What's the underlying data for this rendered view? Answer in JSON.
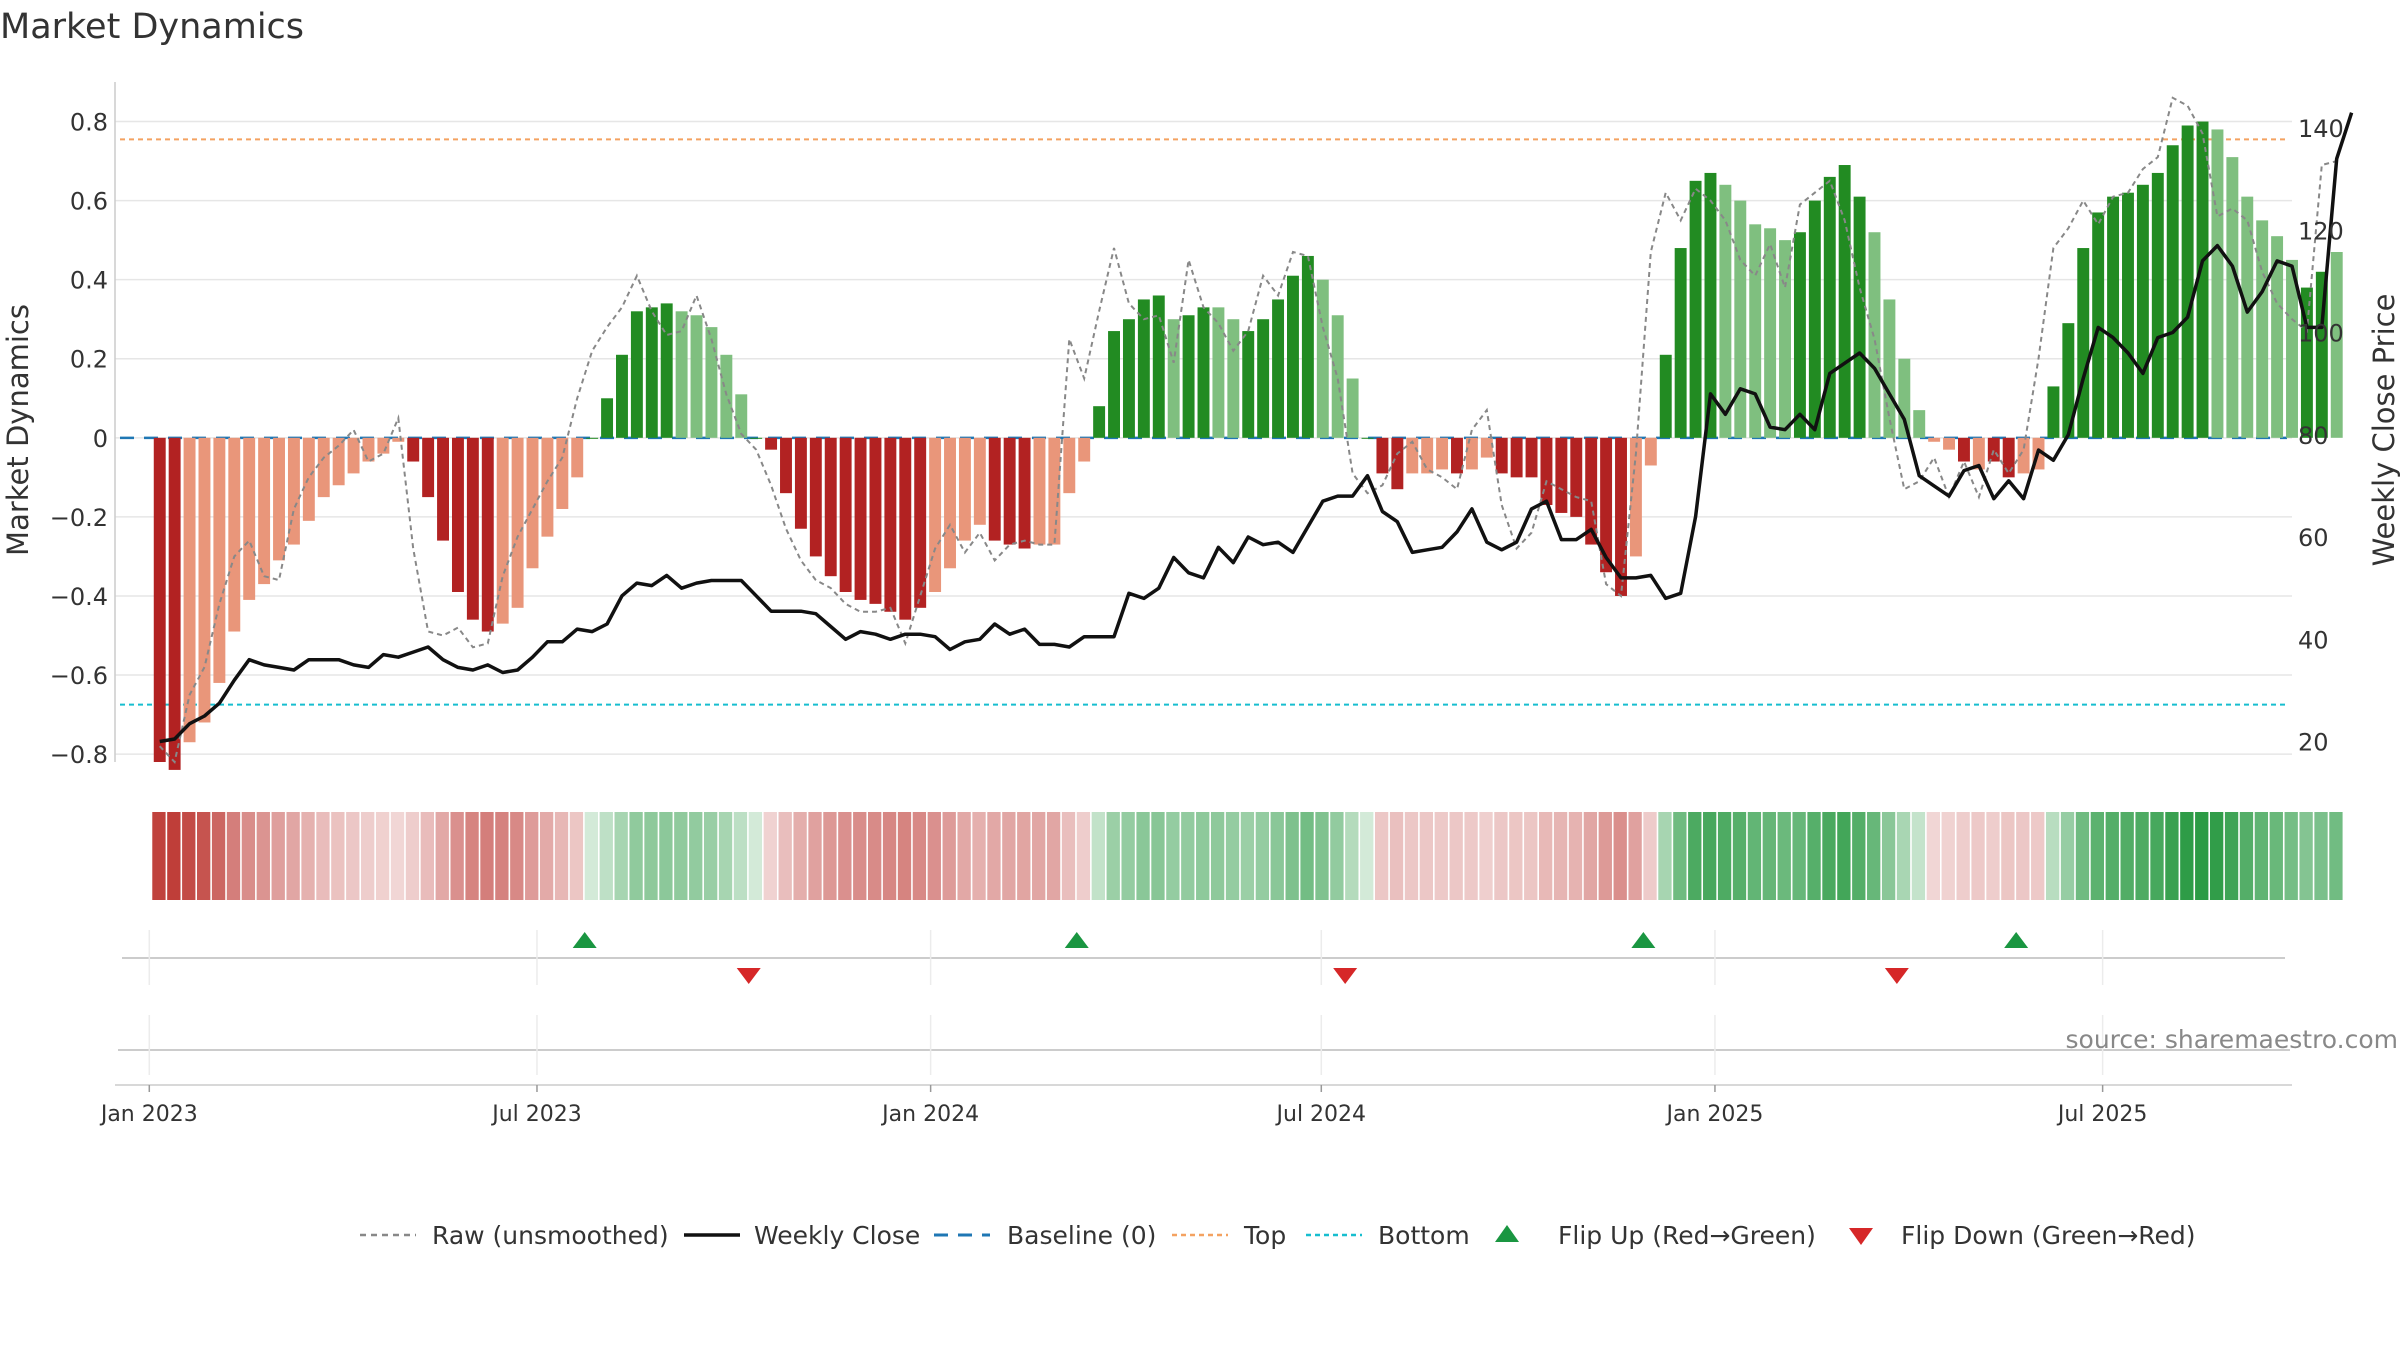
{
  "chart_data": {
    "type": "bar",
    "title": "Market Dynamics",
    "ylabel": "Market Dynamics",
    "y2label": "Weekly Close Price",
    "ylim": [
      -0.82,
      0.9
    ],
    "yticks": [
      -0.8,
      -0.6,
      -0.4,
      -0.2,
      0,
      0.2,
      0.4,
      0.6,
      0.8
    ],
    "y2lim": [
      16,
      149
    ],
    "y2ticks": [
      20,
      40,
      60,
      80,
      100,
      120,
      140
    ],
    "xlim_weeks": [
      -3,
      143
    ],
    "xticks": [
      {
        "label": "Jan 2023",
        "week": -0.7
      },
      {
        "label": "Jul 2023",
        "week": 25.3
      },
      {
        "label": "Jan 2024",
        "week": 51.7
      },
      {
        "label": "Jul 2024",
        "week": 77.9
      },
      {
        "label": "Jan 2025",
        "week": 104.3
      },
      {
        "label": "Jul 2025",
        "week": 130.3
      }
    ],
    "top_level": 0.755,
    "bottom_level": -0.675,
    "baseline": 0,
    "colors": {
      "strong_red": "#b22222",
      "light_red": "#e9967a",
      "strong_green": "#228b22",
      "light_green": "#7fbf7f",
      "weekly_close": "#111111",
      "raw": "#888888",
      "baseline": "#1f77b4",
      "top": "#f4a261",
      "bottom": "#17becf",
      "flip_up": "#1a9641",
      "flip_down": "#d62728"
    },
    "market_dynamics": [
      -0.82,
      -0.84,
      -0.77,
      -0.72,
      -0.62,
      -0.49,
      -0.41,
      -0.37,
      -0.31,
      -0.27,
      -0.21,
      -0.15,
      -0.12,
      -0.09,
      -0.06,
      -0.04,
      -0.01,
      -0.06,
      -0.15,
      -0.26,
      -0.39,
      -0.46,
      -0.49,
      -0.47,
      -0.43,
      -0.33,
      -0.25,
      -0.18,
      -0.1,
      0,
      0.1,
      0.21,
      0.32,
      0.33,
      0.34,
      0.32,
      0.31,
      0.28,
      0.21,
      0.11,
      0,
      -0.03,
      -0.14,
      -0.23,
      -0.3,
      -0.35,
      -0.39,
      -0.41,
      -0.42,
      -0.44,
      -0.46,
      -0.43,
      -0.39,
      -0.33,
      -0.26,
      -0.22,
      -0.26,
      -0.27,
      -0.28,
      -0.27,
      -0.27,
      -0.14,
      -0.06,
      0.08,
      0.27,
      0.3,
      0.35,
      0.36,
      0.3,
      0.31,
      0.33,
      0.33,
      0.3,
      0.27,
      0.3,
      0.35,
      0.41,
      0.46,
      0.4,
      0.31,
      0.15,
      0,
      -0.09,
      -0.13,
      -0.09,
      -0.09,
      -0.08,
      -0.09,
      -0.08,
      -0.05,
      -0.09,
      -0.1,
      -0.1,
      -0.17,
      -0.19,
      -0.2,
      -0.27,
      -0.34,
      -0.4,
      -0.3,
      -0.07,
      0.21,
      0.48,
      0.65,
      0.67,
      0.64,
      0.6,
      0.54,
      0.53,
      0.5,
      0.52,
      0.6,
      0.66,
      0.69,
      0.61,
      0.52,
      0.35,
      0.2,
      0.07,
      -0.01,
      -0.03,
      -0.06,
      -0.08,
      -0.06,
      -0.1,
      -0.09,
      -0.08,
      0.13,
      0.29,
      0.48,
      0.57,
      0.61,
      0.62,
      0.64,
      0.67,
      0.74,
      0.79,
      0.8,
      0.78,
      0.71,
      0.61,
      0.55,
      0.51,
      0.45,
      0.38,
      0.42,
      0.47
    ],
    "bar_tone": [
      "s",
      "s",
      "l",
      "l",
      "l",
      "l",
      "l",
      "l",
      "l",
      "l",
      "l",
      "l",
      "l",
      "l",
      "l",
      "l",
      "l",
      "s",
      "s",
      "s",
      "s",
      "s",
      "s",
      "l",
      "l",
      "l",
      "l",
      "l",
      "l",
      "s",
      "s",
      "s",
      "s",
      "s",
      "s",
      "l",
      "l",
      "l",
      "l",
      "l",
      "s",
      "s",
      "s",
      "s",
      "s",
      "s",
      "s",
      "s",
      "s",
      "s",
      "s",
      "s",
      "l",
      "l",
      "l",
      "l",
      "s",
      "s",
      "s",
      "l",
      "l",
      "l",
      "l",
      "s",
      "s",
      "s",
      "s",
      "s",
      "l",
      "s",
      "s",
      "l",
      "l",
      "s",
      "s",
      "s",
      "s",
      "s",
      "l",
      "l",
      "l",
      "s",
      "s",
      "s",
      "l",
      "l",
      "l",
      "s",
      "l",
      "l",
      "s",
      "s",
      "s",
      "s",
      "s",
      "s",
      "s",
      "s",
      "s",
      "l",
      "l",
      "s",
      "s",
      "s",
      "s",
      "l",
      "l",
      "l",
      "l",
      "l",
      "s",
      "s",
      "s",
      "s",
      "s",
      "l",
      "l",
      "l",
      "l",
      "l",
      "l",
      "s",
      "l",
      "s",
      "s",
      "l",
      "l",
      "s",
      "s",
      "s",
      "s",
      "s",
      "s",
      "s",
      "s",
      "s",
      "s",
      "s",
      "l",
      "l",
      "l",
      "l",
      "l",
      "l",
      "s",
      "s"
    ],
    "raw_unsmoothed": [
      -0.78,
      -0.82,
      -0.65,
      -0.58,
      -0.42,
      -0.3,
      -0.26,
      -0.35,
      -0.36,
      -0.18,
      -0.1,
      -0.05,
      -0.02,
      0.02,
      -0.06,
      -0.04,
      0.05,
      -0.28,
      -0.49,
      -0.5,
      -0.48,
      -0.53,
      -0.52,
      -0.35,
      -0.25,
      -0.18,
      -0.11,
      -0.05,
      0.1,
      0.22,
      0.28,
      0.33,
      0.41,
      0.32,
      0.26,
      0.27,
      0.36,
      0.25,
      0.11,
      0.01,
      -0.03,
      -0.12,
      -0.23,
      -0.31,
      -0.36,
      -0.38,
      -0.42,
      -0.44,
      -0.44,
      -0.43,
      -0.52,
      -0.4,
      -0.28,
      -0.22,
      -0.29,
      -0.24,
      -0.31,
      -0.27,
      -0.26,
      -0.27,
      -0.27,
      0.25,
      0.15,
      0.32,
      0.48,
      0.34,
      0.3,
      0.31,
      0.19,
      0.45,
      0.33,
      0.29,
      0.22,
      0.27,
      0.41,
      0.36,
      0.47,
      0.46,
      0.28,
      0.15,
      -0.09,
      -0.14,
      -0.12,
      -0.04,
      -0.01,
      -0.08,
      -0.1,
      -0.13,
      0.02,
      0.07,
      -0.17,
      -0.28,
      -0.24,
      -0.11,
      -0.13,
      -0.15,
      -0.16,
      -0.37,
      -0.4,
      -0.04,
      0.47,
      0.62,
      0.55,
      0.63,
      0.6,
      0.55,
      0.45,
      0.41,
      0.49,
      0.38,
      0.59,
      0.62,
      0.65,
      0.55,
      0.38,
      0.25,
      0.05,
      -0.13,
      -0.11,
      -0.05,
      -0.15,
      -0.06,
      -0.15,
      -0.03,
      -0.09,
      -0.03,
      0.2,
      0.48,
      0.53,
      0.6,
      0.54,
      0.61,
      0.62,
      0.68,
      0.71,
      0.86,
      0.84,
      0.77,
      0.56,
      0.58,
      0.55,
      0.42,
      0.34,
      0.3,
      0.27,
      0.69,
      0.7
    ],
    "weekly_close": [
      20,
      20.5,
      23.5,
      25,
      27.5,
      32,
      36,
      35,
      34.5,
      34,
      36,
      36,
      36,
      35,
      34.5,
      37,
      36.5,
      37.5,
      38.5,
      36,
      34.5,
      34,
      35,
      33.5,
      34,
      36.5,
      39.5,
      39.5,
      42,
      41.5,
      43,
      48.5,
      51,
      50.5,
      52.5,
      50,
      51,
      51.5,
      51.5,
      51.5,
      48.5,
      45.5,
      45.5,
      45.5,
      45,
      42.5,
      40,
      41.5,
      41,
      40,
      41,
      41,
      40.5,
      38,
      39.5,
      40,
      43,
      41,
      42,
      39,
      39,
      38.5,
      40.5,
      40.5,
      40.5,
      49,
      48,
      50,
      56,
      53,
      52,
      58,
      55,
      60,
      58.5,
      59,
      57,
      62,
      67,
      68,
      68,
      72,
      65,
      63,
      57,
      57.5,
      58,
      61,
      65.5,
      59,
      57.5,
      59,
      65.5,
      67,
      59.5,
      59.5,
      61.5,
      56,
      52,
      52,
      52.5,
      48,
      49,
      64,
      88,
      84,
      89,
      88,
      81.5,
      81,
      84,
      81,
      92,
      94,
      96,
      93,
      88,
      83,
      72,
      70,
      68,
      73,
      74,
      67.5,
      71,
      67.5,
      77,
      75,
      80,
      91,
      101,
      99,
      96,
      92,
      99,
      100,
      103,
      114,
      117,
      113,
      104,
      108,
      114,
      113,
      101,
      101,
      134,
      143
    ],
    "flip_up_weeks": [
      28.5,
      61.5,
      99.5,
      124.5
    ],
    "flip_down_weeks": [
      39.5,
      79.5,
      116.5
    ],
    "legend": [
      "Raw (unsmoothed)",
      "Weekly Close",
      "Baseline (0)",
      "Top",
      "Bottom",
      "Flip Up (Red→Green)",
      "Flip Down (Green→Red)"
    ],
    "source": "source: sharemaestro.com"
  }
}
